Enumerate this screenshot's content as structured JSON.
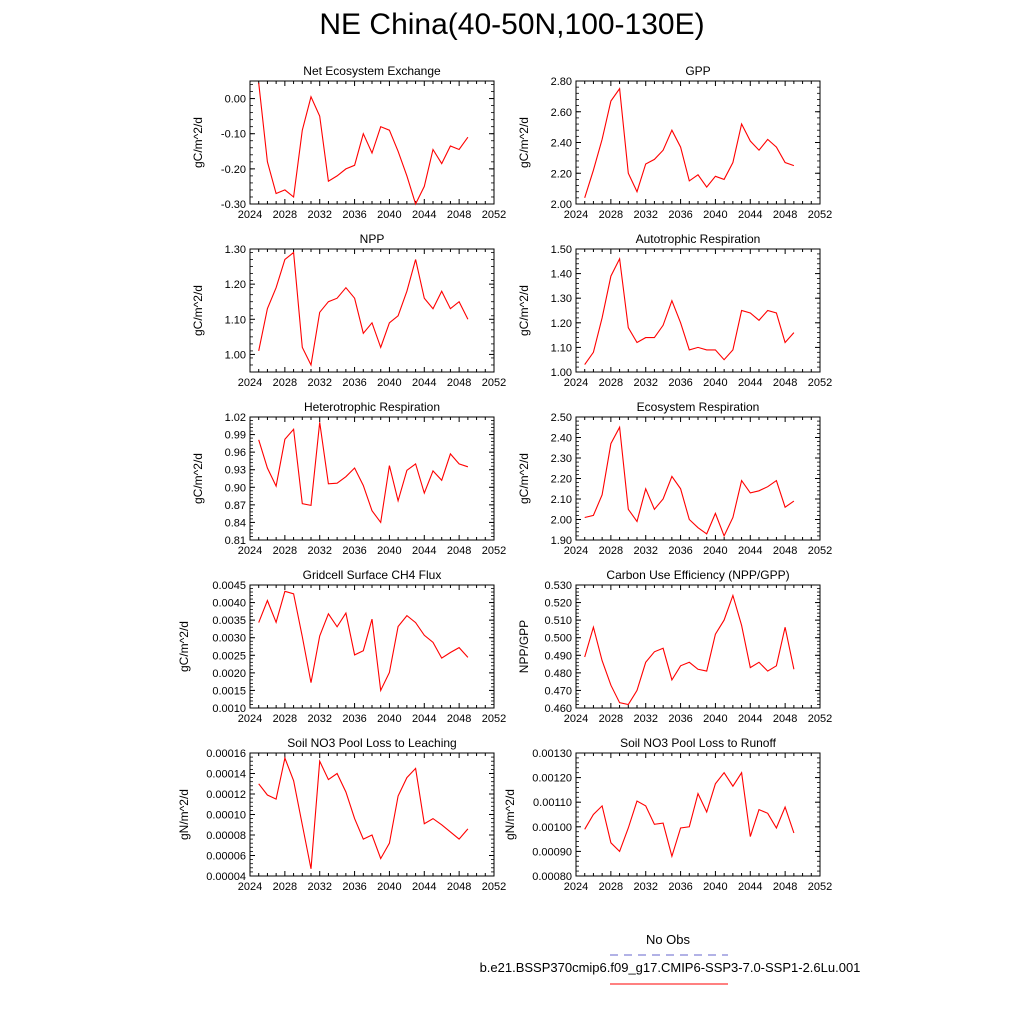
{
  "page_title": "NE China(40-50N,100-130E)",
  "legend": {
    "obs_label": "No Obs",
    "obs_color": "#6666cc",
    "run_label": "b.e21.BSSP370cmip6.f09_g17.CMIP6-SSP3-7.0-SSP1-2.6Lu.001",
    "run_color": "#ff0000"
  },
  "chart_data": [
    {
      "type": "line",
      "title": "Net Ecosystem Exchange",
      "ylabel": "gC/m^2/d",
      "xlabel": "",
      "xlim": [
        2024,
        2052
      ],
      "ylim": [
        -0.3,
        0.05
      ],
      "x_ticks": [
        2024,
        2028,
        2032,
        2036,
        2040,
        2044,
        2048,
        2052
      ],
      "y_ticks": [
        "0.00",
        "-0.10",
        "-0.20",
        "-0.30"
      ],
      "x": [
        2025,
        2026,
        2027,
        2028,
        2029,
        2030,
        2031,
        2032,
        2033,
        2034,
        2035,
        2036,
        2037,
        2038,
        2039,
        2040,
        2041,
        2042,
        2043,
        2044,
        2045,
        2046,
        2047,
        2048,
        2049
      ],
      "series": [
        {
          "values": [
            0.045,
            -0.18,
            -0.27,
            -0.26,
            -0.28,
            -0.09,
            0.005,
            -0.05,
            -0.235,
            -0.22,
            -0.2,
            -0.19,
            -0.1,
            -0.155,
            -0.08,
            -0.09,
            -0.15,
            -0.22,
            -0.3,
            -0.25,
            -0.145,
            -0.185,
            -0.135,
            -0.145,
            -0.11
          ]
        }
      ]
    },
    {
      "type": "line",
      "title": "GPP",
      "ylabel": "gC/m^2/d",
      "xlabel": "",
      "xlim": [
        2024,
        2052
      ],
      "ylim": [
        2.0,
        2.8
      ],
      "x_ticks": [
        2024,
        2028,
        2032,
        2036,
        2040,
        2044,
        2048,
        2052
      ],
      "y_ticks": [
        "2.80",
        "2.60",
        "2.40",
        "2.20",
        "2.00"
      ],
      "x": [
        2025,
        2026,
        2027,
        2028,
        2029,
        2030,
        2031,
        2032,
        2033,
        2034,
        2035,
        2036,
        2037,
        2038,
        2039,
        2040,
        2041,
        2042,
        2043,
        2044,
        2045,
        2046,
        2047,
        2048,
        2049
      ],
      "series": [
        {
          "values": [
            2.04,
            2.22,
            2.42,
            2.67,
            2.75,
            2.2,
            2.08,
            2.26,
            2.29,
            2.35,
            2.48,
            2.37,
            2.15,
            2.19,
            2.11,
            2.18,
            2.16,
            2.27,
            2.52,
            2.41,
            2.35,
            2.42,
            2.37,
            2.27,
            2.25
          ]
        }
      ]
    },
    {
      "type": "line",
      "title": "NPP",
      "ylabel": "gC/m^2/d",
      "xlabel": "",
      "xlim": [
        2024,
        2052
      ],
      "ylim": [
        0.95,
        1.3
      ],
      "x_ticks": [
        2024,
        2028,
        2032,
        2036,
        2040,
        2044,
        2048,
        2052
      ],
      "y_ticks": [
        "1.30",
        "1.20",
        "1.10",
        "1.00"
      ],
      "x": [
        2025,
        2026,
        2027,
        2028,
        2029,
        2030,
        2031,
        2032,
        2033,
        2034,
        2035,
        2036,
        2037,
        2038,
        2039,
        2040,
        2041,
        2042,
        2043,
        2044,
        2045,
        2046,
        2047,
        2048,
        2049
      ],
      "series": [
        {
          "values": [
            1.01,
            1.13,
            1.19,
            1.27,
            1.29,
            1.02,
            0.97,
            1.12,
            1.15,
            1.16,
            1.19,
            1.16,
            1.06,
            1.09,
            1.02,
            1.09,
            1.11,
            1.18,
            1.27,
            1.16,
            1.13,
            1.18,
            1.13,
            1.15,
            1.1
          ]
        }
      ]
    },
    {
      "type": "line",
      "title": "Autotrophic Respiration",
      "ylabel": "gC/m^2/d",
      "xlabel": "",
      "xlim": [
        2024,
        2052
      ],
      "ylim": [
        1.0,
        1.5
      ],
      "x_ticks": [
        2024,
        2028,
        2032,
        2036,
        2040,
        2044,
        2048,
        2052
      ],
      "y_ticks": [
        "1.50",
        "1.40",
        "1.30",
        "1.20",
        "1.10",
        "1.00"
      ],
      "x": [
        2025,
        2026,
        2027,
        2028,
        2029,
        2030,
        2031,
        2032,
        2033,
        2034,
        2035,
        2036,
        2037,
        2038,
        2039,
        2040,
        2041,
        2042,
        2043,
        2044,
        2045,
        2046,
        2047,
        2048,
        2049
      ],
      "series": [
        {
          "values": [
            1.03,
            1.08,
            1.22,
            1.39,
            1.46,
            1.18,
            1.12,
            1.14,
            1.14,
            1.19,
            1.29,
            1.2,
            1.09,
            1.1,
            1.09,
            1.09,
            1.05,
            1.09,
            1.25,
            1.24,
            1.21,
            1.25,
            1.24,
            1.12,
            1.16
          ]
        }
      ]
    },
    {
      "type": "line",
      "title": "Heterotrophic Respiration",
      "ylabel": "gC/m^2/d",
      "xlabel": "",
      "xlim": [
        2024,
        2052
      ],
      "ylim": [
        0.81,
        1.02
      ],
      "x_ticks": [
        2024,
        2028,
        2032,
        2036,
        2040,
        2044,
        2048,
        2052
      ],
      "y_ticks": [
        "1.02",
        "0.99",
        "0.96",
        "0.93",
        "0.90",
        "0.87",
        "0.84",
        "0.81"
      ],
      "x": [
        2025,
        2026,
        2027,
        2028,
        2029,
        2030,
        2031,
        2032,
        2033,
        2034,
        2035,
        2036,
        2037,
        2038,
        2039,
        2040,
        2041,
        2042,
        2043,
        2044,
        2045,
        2046,
        2047,
        2048,
        2049
      ],
      "series": [
        {
          "values": [
            0.981,
            0.933,
            0.902,
            0.982,
            0.999,
            0.872,
            0.869,
            1.011,
            0.906,
            0.907,
            0.918,
            0.933,
            0.903,
            0.86,
            0.84,
            0.937,
            0.877,
            0.929,
            0.94,
            0.89,
            0.928,
            0.912,
            0.957,
            0.94,
            0.935
          ]
        }
      ]
    },
    {
      "type": "line",
      "title": "Ecosystem Respiration",
      "ylabel": "gC/m^2/d",
      "xlabel": "",
      "xlim": [
        2024,
        2052
      ],
      "ylim": [
        1.9,
        2.5
      ],
      "x_ticks": [
        2024,
        2028,
        2032,
        2036,
        2040,
        2044,
        2048,
        2052
      ],
      "y_ticks": [
        "2.50",
        "2.40",
        "2.30",
        "2.20",
        "2.10",
        "2.00",
        "1.90"
      ],
      "x": [
        2025,
        2026,
        2027,
        2028,
        2029,
        2030,
        2031,
        2032,
        2033,
        2034,
        2035,
        2036,
        2037,
        2038,
        2039,
        2040,
        2041,
        2042,
        2043,
        2044,
        2045,
        2046,
        2047,
        2048,
        2049
      ],
      "series": [
        {
          "values": [
            2.01,
            2.02,
            2.12,
            2.37,
            2.45,
            2.05,
            1.99,
            2.15,
            2.05,
            2.1,
            2.21,
            2.15,
            2.0,
            1.96,
            1.93,
            2.03,
            1.92,
            2.01,
            2.19,
            2.13,
            2.14,
            2.16,
            2.19,
            2.06,
            2.09
          ]
        }
      ]
    },
    {
      "type": "line",
      "title": "Gridcell Surface CH4 Flux",
      "ylabel": "gC/m^2/d",
      "xlabel": "",
      "xlim": [
        2024,
        2052
      ],
      "ylim": [
        0.001,
        0.0045
      ],
      "x_ticks": [
        2024,
        2028,
        2032,
        2036,
        2040,
        2044,
        2048,
        2052
      ],
      "y_ticks": [
        "0.0045",
        "0.0040",
        "0.0035",
        "0.0030",
        "0.0025",
        "0.0020",
        "0.0015",
        "0.0010"
      ],
      "x": [
        2025,
        2026,
        2027,
        2028,
        2029,
        2030,
        2031,
        2032,
        2033,
        2034,
        2035,
        2036,
        2037,
        2038,
        2039,
        2040,
        2041,
        2042,
        2043,
        2044,
        2045,
        2046,
        2047,
        2048,
        2049
      ],
      "series": [
        {
          "values": [
            0.00343,
            0.00406,
            0.00344,
            0.00432,
            0.00425,
            0.00303,
            0.00172,
            0.00305,
            0.00368,
            0.00331,
            0.0037,
            0.00251,
            0.00263,
            0.00353,
            0.0015,
            0.00201,
            0.00332,
            0.00363,
            0.00343,
            0.00307,
            0.00287,
            0.00242,
            0.00258,
            0.00272,
            0.00244
          ]
        }
      ]
    },
    {
      "type": "line",
      "title": "Carbon Use Efficiency (NPP/GPP)",
      "ylabel": "NPP/GPP",
      "xlabel": "",
      "xlim": [
        2024,
        2052
      ],
      "ylim": [
        0.46,
        0.53
      ],
      "x_ticks": [
        2024,
        2028,
        2032,
        2036,
        2040,
        2044,
        2048,
        2052
      ],
      "y_ticks": [
        "0.530",
        "0.520",
        "0.510",
        "0.500",
        "0.490",
        "0.480",
        "0.470",
        "0.460"
      ],
      "x": [
        2025,
        2026,
        2027,
        2028,
        2029,
        2030,
        2031,
        2032,
        2033,
        2034,
        2035,
        2036,
        2037,
        2038,
        2039,
        2040,
        2041,
        2042,
        2043,
        2044,
        2045,
        2046,
        2047,
        2048,
        2049
      ],
      "series": [
        {
          "values": [
            0.489,
            0.506,
            0.487,
            0.473,
            0.463,
            0.462,
            0.47,
            0.486,
            0.492,
            0.494,
            0.476,
            0.484,
            0.486,
            0.482,
            0.481,
            0.502,
            0.51,
            0.524,
            0.507,
            0.483,
            0.486,
            0.481,
            0.484,
            0.506,
            0.482
          ]
        }
      ]
    },
    {
      "type": "line",
      "title": "Soil NO3 Pool Loss to Leaching",
      "ylabel": "gN/m^2/d",
      "xlabel": "",
      "xlim": [
        2024,
        2052
      ],
      "ylim": [
        4e-05,
        0.00016
      ],
      "x_ticks": [
        2024,
        2028,
        2032,
        2036,
        2040,
        2044,
        2048,
        2052
      ],
      "y_ticks": [
        "0.00016",
        "0.00014",
        "0.00012",
        "0.00010",
        "0.00008",
        "0.00006",
        "0.00004"
      ],
      "x": [
        2025,
        2026,
        2027,
        2028,
        2029,
        2030,
        2031,
        2032,
        2033,
        2034,
        2035,
        2036,
        2037,
        2038,
        2039,
        2040,
        2041,
        2042,
        2043,
        2044,
        2045,
        2046,
        2047,
        2048,
        2049
      ],
      "series": [
        {
          "values": [
            0.00013,
            0.000119,
            0.000115,
            0.000155,
            0.000133,
            9e-05,
            4.7e-05,
            0.000152,
            0.000134,
            0.00014,
            0.000122,
            9.6e-05,
            7.6e-05,
            8e-05,
            5.7e-05,
            7.2e-05,
            0.000118,
            0.000136,
            0.000145,
            9.1e-05,
            9.6e-05,
            9e-05,
            8.3e-05,
            7.6e-05,
            8.6e-05
          ]
        }
      ]
    },
    {
      "type": "line",
      "title": "Soil NO3 Pool Loss to Runoff",
      "ylabel": "gN/m^2/d",
      "xlabel": "",
      "xlim": [
        2024,
        2052
      ],
      "ylim": [
        0.0008,
        0.0013
      ],
      "x_ticks": [
        2024,
        2028,
        2032,
        2036,
        2040,
        2044,
        2048,
        2052
      ],
      "y_ticks": [
        "0.00130",
        "0.00120",
        "0.00110",
        "0.00100",
        "0.00090",
        "0.00080"
      ],
      "x": [
        2025,
        2026,
        2027,
        2028,
        2029,
        2030,
        2031,
        2032,
        2033,
        2034,
        2035,
        2036,
        2037,
        2038,
        2039,
        2040,
        2041,
        2042,
        2043,
        2044,
        2045,
        2046,
        2047,
        2048,
        2049
      ],
      "series": [
        {
          "values": [
            0.00099,
            0.00105,
            0.001085,
            0.000935,
            0.0009,
            0.000995,
            0.001105,
            0.001085,
            0.00101,
            0.001015,
            0.00088,
            0.000995,
            0.001,
            0.001135,
            0.00106,
            0.001175,
            0.00122,
            0.001165,
            0.00122,
            0.00096,
            0.00107,
            0.001055,
            0.000995,
            0.00108,
            0.000975
          ]
        }
      ]
    }
  ]
}
